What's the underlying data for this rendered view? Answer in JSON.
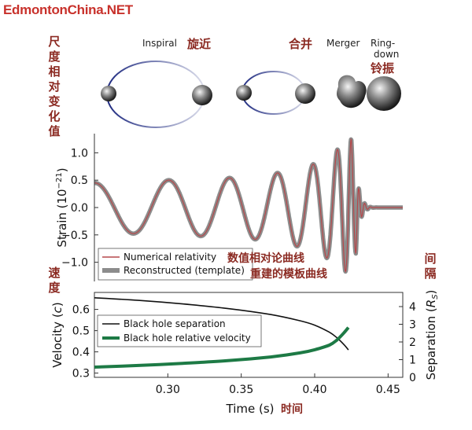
{
  "watermark": "EdmontonChina.NET",
  "top_labels": {
    "inspiral_en": "Inspiral",
    "inspiral_cn": "旋近",
    "merger_cn": "合并",
    "merger_en": "Merger",
    "ringdown_en_1": "Ring-",
    "ringdown_en_2": "down",
    "ringdown_cn": "铃振"
  },
  "side_labels": {
    "strain_cn": [
      "尺",
      "度",
      "相",
      "对",
      "变",
      "化",
      "值"
    ],
    "velocity_cn": [
      "速",
      "度"
    ],
    "separation_cn": [
      "间",
      "隔"
    ],
    "time_cn": "时间"
  },
  "annotations": {
    "numerical_cn": "数值相对论曲线",
    "reconstructed_cn": "重建的模板曲线"
  },
  "colors": {
    "numerical": "#b5484b",
    "reconstructed": "#8c8c8c",
    "separation": "#111111",
    "velocity": "#1d7a45",
    "accent_text": "#8b2a22"
  },
  "chart_data": [
    {
      "type": "line",
      "ylabel": "Strain (10",
      "ylabel_exp": "−21",
      "ylabel_close": ")",
      "xlim": [
        0.25,
        0.46
      ],
      "ylim": [
        -1.35,
        1.35
      ],
      "yticks": [
        1.0,
        0.5,
        0.0,
        -0.5,
        -1.0
      ],
      "ytick_labels": [
        "1.0",
        "0.5",
        "0.0",
        "−0.5",
        "−1.0"
      ],
      "legend_placement": "lower-left",
      "series": [
        {
          "name": "Numerical relativity",
          "style": "thin red line"
        },
        {
          "name": "Reconstructed (template)",
          "style": "thick gray band"
        }
      ],
      "waveform": {
        "description_points": [
          {
            "t": 0.25,
            "amplitude": 0.45
          },
          {
            "t": 0.3,
            "amplitude": 0.5
          },
          {
            "t": 0.35,
            "amplitude": 0.55
          },
          {
            "t": 0.38,
            "amplitude": 0.65
          },
          {
            "t": 0.4,
            "amplitude": 0.8
          },
          {
            "t": 0.41,
            "amplitude": 0.95
          },
          {
            "t": 0.42,
            "amplitude": 1.15
          },
          {
            "t": 0.425,
            "amplitude": 1.25
          },
          {
            "t": 0.43,
            "amplitude": 0.6
          },
          {
            "t": 0.44,
            "amplitude": 0.05
          },
          {
            "t": 0.46,
            "amplitude": 0.0
          }
        ]
      }
    },
    {
      "type": "line",
      "xlabel": "Time (s)",
      "ylabel_left": "Velocity (",
      "ylabel_left_unit": "c",
      "ylabel_left_close": ")",
      "ylabel_right": "Separation (",
      "ylabel_right_unit": "R",
      "ylabel_right_sub": "S",
      "ylabel_right_close": ")",
      "xlim": [
        0.25,
        0.46
      ],
      "ylim_left": [
        0.28,
        0.68
      ],
      "ylim_right": [
        0,
        4.8
      ],
      "xticks": [
        0.3,
        0.35,
        0.4,
        0.45
      ],
      "xtick_labels": [
        "0.30",
        "0.35",
        "0.40",
        "0.45"
      ],
      "yticks_left": [
        0.3,
        0.4,
        0.5,
        0.6
      ],
      "ytick_left_labels": [
        "0.3",
        "0.4",
        "0.5",
        "0.6"
      ],
      "yticks_right": [
        0,
        1,
        2,
        3,
        4
      ],
      "ytick_right_labels": [
        "0",
        "1",
        "2",
        "3",
        "4"
      ],
      "legend_placement": "upper-left",
      "series": [
        {
          "name": "Black hole separation",
          "axis": "right",
          "x": [
            0.25,
            0.28,
            0.31,
            0.34,
            0.37,
            0.39,
            0.4,
            0.41,
            0.415,
            0.42,
            0.423
          ],
          "y": [
            4.5,
            4.35,
            4.15,
            3.9,
            3.55,
            3.2,
            2.95,
            2.55,
            2.25,
            1.85,
            1.55
          ]
        },
        {
          "name": "Black hole relative velocity",
          "axis": "left",
          "x": [
            0.25,
            0.28,
            0.31,
            0.34,
            0.37,
            0.39,
            0.4,
            0.41,
            0.415,
            0.42,
            0.423
          ],
          "y": [
            0.328,
            0.336,
            0.346,
            0.358,
            0.376,
            0.395,
            0.41,
            0.432,
            0.455,
            0.49,
            0.515
          ]
        }
      ]
    }
  ]
}
